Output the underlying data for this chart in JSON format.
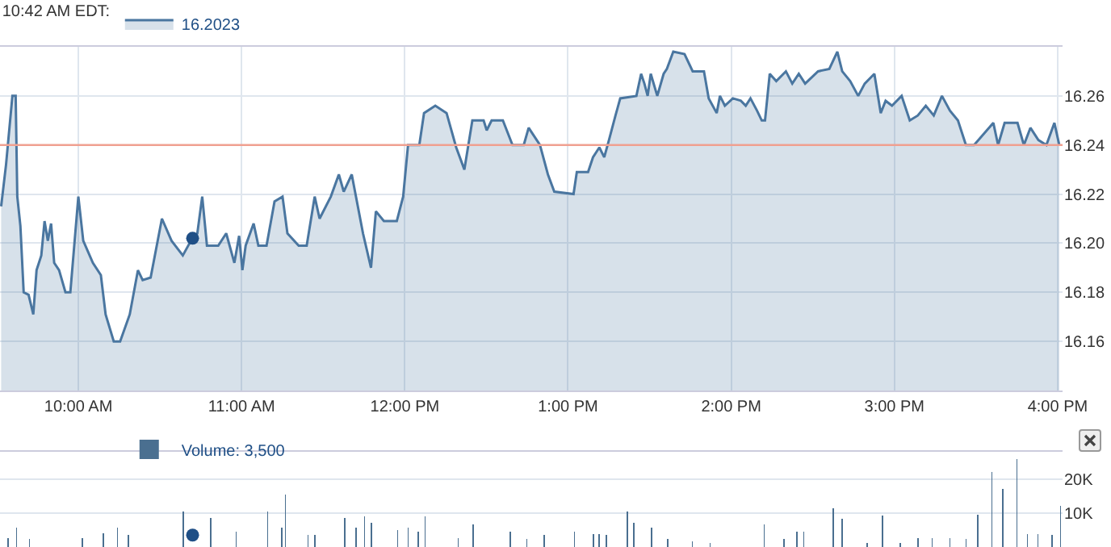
{
  "chart_data": [
    {
      "type": "area",
      "title": "10:42 AM EDT:",
      "legend": "top left",
      "grid": true,
      "xlim": [
        9.52,
        16.03
      ],
      "ylim": [
        16.14,
        16.28
      ],
      "xticks": [
        {
          "value": 10,
          "label": "10:00 AM"
        },
        {
          "value": 11,
          "label": "11:00 AM"
        },
        {
          "value": 12,
          "label": "12:00 PM"
        },
        {
          "value": 13,
          "label": "1:00 PM"
        },
        {
          "value": 14,
          "label": "2:00 PM"
        },
        {
          "value": 15,
          "label": "3:00 PM"
        },
        {
          "value": 16,
          "label": "4:00 PM"
        }
      ],
      "yticks": [
        {
          "value": 16.16,
          "label": "16.16"
        },
        {
          "value": 16.18,
          "label": "16.18"
        },
        {
          "value": 16.2,
          "label": "16.20"
        },
        {
          "value": 16.22,
          "label": "16.22"
        },
        {
          "value": 16.24,
          "label": "16.24"
        },
        {
          "value": 16.26,
          "label": "16.26"
        }
      ],
      "ref_lines": [
        {
          "axis": "y",
          "value": 16.24,
          "color": "#f0a090"
        }
      ],
      "series": [
        {
          "name": "16.2023",
          "color": "#4a76a0",
          "x": [
            9.527,
            9.557,
            9.596,
            9.616,
            9.626,
            9.645,
            9.665,
            9.695,
            9.724,
            9.744,
            9.773,
            9.793,
            9.813,
            9.833,
            9.852,
            9.882,
            9.921,
            9.951,
            10.0,
            10.03,
            10.089,
            10.138,
            10.167,
            10.217,
            10.256,
            10.315,
            10.365,
            10.394,
            10.443,
            10.512,
            10.571,
            10.64,
            10.69,
            10.729,
            10.759,
            10.788,
            10.857,
            10.906,
            10.956,
            10.985,
            11.005,
            11.025,
            11.074,
            11.103,
            11.153,
            11.202,
            11.251,
            11.281,
            11.35,
            11.399,
            11.448,
            11.478,
            11.547,
            11.596,
            11.626,
            11.675,
            11.744,
            11.793,
            11.823,
            11.872,
            11.951,
            11.99,
            12.02,
            12.089,
            12.118,
            12.187,
            12.256,
            12.315,
            12.365,
            12.414,
            12.483,
            12.502,
            12.532,
            12.601,
            12.66,
            12.729,
            12.759,
            12.828,
            12.877,
            12.916,
            13.034,
            13.054,
            13.123,
            13.153,
            13.192,
            13.222,
            13.251,
            13.291,
            13.32,
            13.419,
            13.448,
            13.468,
            13.488,
            13.507,
            13.547,
            13.586,
            13.606,
            13.645,
            13.714,
            13.764,
            13.833,
            13.862,
            13.911,
            13.931,
            13.961,
            14.01,
            14.059,
            14.089,
            14.118,
            14.158,
            14.187,
            14.207,
            14.236,
            14.276,
            14.335,
            14.374,
            14.414,
            14.453,
            14.532,
            14.601,
            14.65,
            14.68,
            14.729,
            14.778,
            14.818,
            14.877,
            14.916,
            14.946,
            14.985,
            15.044,
            15.094,
            15.143,
            15.192,
            15.241,
            15.291,
            15.34,
            15.389,
            15.438,
            15.488,
            15.606,
            15.635,
            15.675,
            15.754,
            15.793,
            15.833,
            15.882,
            15.931,
            15.98,
            16.01
          ],
          "values": [
            16.215,
            16.232,
            16.26,
            16.26,
            16.219,
            16.207,
            16.18,
            16.179,
            16.171,
            16.189,
            16.195,
            16.209,
            16.201,
            16.208,
            16.192,
            16.189,
            16.18,
            16.18,
            16.219,
            16.201,
            16.192,
            16.187,
            16.171,
            16.16,
            16.16,
            16.171,
            16.189,
            16.185,
            16.186,
            16.21,
            16.201,
            16.195,
            16.201,
            16.204,
            16.219,
            16.199,
            16.199,
            16.204,
            16.192,
            16.203,
            16.189,
            16.199,
            16.208,
            16.199,
            16.199,
            16.217,
            16.219,
            16.204,
            16.199,
            16.199,
            16.219,
            16.21,
            16.219,
            16.228,
            16.221,
            16.228,
            16.204,
            16.19,
            16.213,
            16.209,
            16.209,
            16.219,
            16.24,
            16.24,
            16.253,
            16.256,
            16.253,
            16.239,
            16.23,
            16.25,
            16.25,
            16.246,
            16.25,
            16.25,
            16.24,
            16.24,
            16.247,
            16.24,
            16.228,
            16.221,
            16.22,
            16.229,
            16.229,
            16.235,
            16.239,
            16.235,
            16.242,
            16.252,
            16.259,
            16.26,
            16.269,
            16.265,
            16.26,
            16.269,
            16.26,
            16.269,
            16.271,
            16.278,
            16.277,
            16.27,
            16.27,
            16.259,
            16.253,
            16.26,
            16.256,
            16.259,
            16.258,
            16.256,
            16.259,
            16.254,
            16.25,
            16.25,
            16.269,
            16.266,
            16.27,
            16.265,
            16.269,
            16.265,
            16.27,
            16.271,
            16.278,
            16.27,
            16.266,
            16.26,
            16.265,
            16.269,
            16.253,
            16.258,
            16.256,
            16.26,
            16.25,
            16.252,
            16.256,
            16.252,
            16.26,
            16.254,
            16.25,
            16.24,
            16.24,
            16.249,
            16.24,
            16.249,
            16.249,
            16.24,
            16.247,
            16.242,
            16.24,
            16.249,
            16.24
          ]
        },
        {
          "type": "scatter",
          "marker": "circle",
          "color": "#1f4f86",
          "x": [
            10.7
          ],
          "values": [
            16.202
          ]
        }
      ]
    },
    {
      "type": "bar",
      "legend": "top left",
      "grid": true,
      "tick_labels": "y",
      "xlim": [
        9.52,
        16.03
      ],
      "ylim": [
        0,
        28000
      ],
      "yticks": [
        {
          "value": 10000,
          "label": "10K"
        },
        {
          "value": 20000,
          "label": "20K"
        }
      ],
      "series": [
        {
          "name": "Volume: 3,500",
          "color": "#4a6f90",
          "x": [
            9.57,
            9.622,
            9.7,
            10.024,
            10.154,
            10.24,
            10.305,
            10.642,
            10.811,
            10.966,
            11.16,
            11.247,
            11.268,
            11.407,
            11.45,
            11.632,
            11.701,
            11.753,
            11.796,
            11.956,
            12.021,
            12.081,
            12.124,
            12.327,
            12.418,
            12.647,
            12.747,
            12.854,
            13.04,
            13.157,
            13.191,
            13.235,
            13.365,
            13.403,
            13.511,
            13.611,
            13.762,
            13.87,
            14.203,
            14.323,
            14.401,
            14.444,
            14.626,
            14.678,
            14.834,
            14.928,
            15.036,
            15.145,
            15.231,
            15.339,
            15.438,
            15.512,
            15.598,
            15.663,
            15.75,
            15.815,
            15.879,
            15.966,
            16.018
          ],
          "values": [
            2700,
            5600,
            2300,
            2700,
            4000,
            5600,
            3500,
            10500,
            8500,
            4500,
            10500,
            5600,
            15500,
            3500,
            3500,
            8500,
            5600,
            9000,
            7200,
            5000,
            5600,
            4500,
            9000,
            2700,
            6700,
            4500,
            2300,
            3500,
            4500,
            3900,
            3900,
            3500,
            10500,
            7200,
            5600,
            2300,
            1700,
            1200,
            6700,
            2300,
            4500,
            4500,
            11500,
            8200,
            1200,
            9300,
            1200,
            2700,
            2700,
            2700,
            2300,
            9500,
            22000,
            17200,
            25800,
            3900,
            3900,
            3500,
            12200
          ]
        },
        {
          "type": "scatter",
          "marker": "circle",
          "color": "#1f4f86",
          "x": [
            10.7
          ],
          "values": [
            3500
          ]
        }
      ]
    }
  ]
}
